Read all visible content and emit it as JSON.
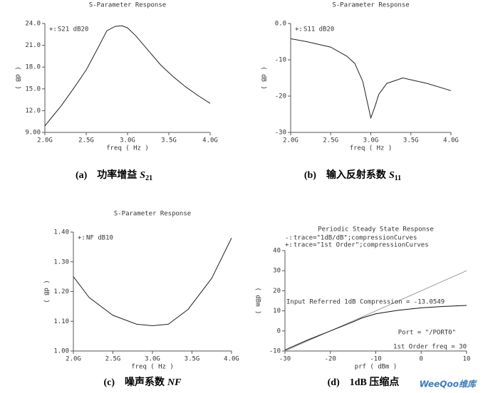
{
  "chart_data": [
    {
      "type": "line",
      "title": "S-Parameter Response",
      "xlabel": "freq ( Hz )",
      "ylabel": "( dB )",
      "caption_label": "(a)",
      "caption_text": "功率增益",
      "caption_symbol": "S",
      "caption_subscript": "21",
      "x": [
        2.0,
        2.1,
        2.2,
        2.35,
        2.5,
        2.65,
        2.75,
        2.85,
        2.93,
        3.0,
        3.1,
        3.25,
        3.4,
        3.55,
        3.7,
        3.85,
        4.0
      ],
      "series": [
        {
          "name": "S21 dB20",
          "color": "#222222",
          "values": [
            9.9,
            11.3,
            12.7,
            15.1,
            17.6,
            20.8,
            23.0,
            23.6,
            23.7,
            23.4,
            22.3,
            20.3,
            18.3,
            16.7,
            15.3,
            14.1,
            13.0
          ]
        }
      ],
      "xlim": [
        2.0,
        4.0
      ],
      "ylim": [
        9,
        24
      ],
      "xticks": [
        {
          "value": 2.0,
          "label": "2.0G"
        },
        {
          "value": 2.5,
          "label": "2.5G"
        },
        {
          "value": 3.0,
          "label": "3.0G"
        },
        {
          "value": 3.5,
          "label": "3.5G"
        },
        {
          "value": 4.0,
          "label": "4.0G"
        }
      ],
      "yticks": [
        {
          "value": 9,
          "label": "9.00"
        },
        {
          "value": 12,
          "label": "12.0"
        },
        {
          "value": 15,
          "label": "15.0"
        },
        {
          "value": 18,
          "label": "18.0"
        },
        {
          "value": 21,
          "label": "21.0"
        },
        {
          "value": 24,
          "label": "24.0"
        }
      ]
    },
    {
      "type": "line",
      "title": "S-Parameter Response",
      "xlabel": "freq ( Hz )",
      "ylabel": "( dB )",
      "caption_label": "(b)",
      "caption_text": "输入反射系数",
      "caption_symbol": "S",
      "caption_subscript": "11",
      "x": [
        2.0,
        2.2,
        2.5,
        2.7,
        2.8,
        2.9,
        2.95,
        3.0,
        3.05,
        3.1,
        3.2,
        3.4,
        3.7,
        4.0
      ],
      "series": [
        {
          "name": "S11 dB20",
          "color": "#222222",
          "values": [
            -4.2,
            -5,
            -6.5,
            -9,
            -11,
            -16,
            -21,
            -26,
            -23,
            -19.5,
            -16.5,
            -15,
            -16.5,
            -18.5
          ]
        }
      ],
      "xlim": [
        2.0,
        4.0
      ],
      "ylim": [
        -30,
        0
      ],
      "xticks": [
        {
          "value": 2.0,
          "label": "2.0G"
        },
        {
          "value": 2.5,
          "label": "2.5G"
        },
        {
          "value": 3.0,
          "label": "3.0G"
        },
        {
          "value": 3.5,
          "label": "3.5G"
        },
        {
          "value": 4.0,
          "label": "4.0G"
        }
      ],
      "yticks": [
        -30,
        -20,
        -10,
        {
          "value": 0,
          "label": "0.0"
        }
      ]
    },
    {
      "type": "line",
      "title": "S-Parameter Response",
      "xlabel": "freq ( Hz )",
      "ylabel": "( dB )",
      "caption_label": "(c)",
      "caption_text": "噪声系数",
      "caption_symbol": "NF",
      "x": [
        2.0,
        2.2,
        2.5,
        2.8,
        3.0,
        3.2,
        3.45,
        3.75,
        4.0
      ],
      "series": [
        {
          "name": "NF dB10",
          "color": "#222222",
          "values": [
            1.25,
            1.18,
            1.12,
            1.09,
            1.085,
            1.09,
            1.14,
            1.245,
            1.38
          ]
        }
      ],
      "xlim": [
        2.0,
        4.0
      ],
      "ylim": [
        1.0,
        1.4
      ],
      "xticks": [
        {
          "value": 2.0,
          "label": "2.0G"
        },
        {
          "value": 2.5,
          "label": "2.5G"
        },
        {
          "value": 3.0,
          "label": "3.0G"
        },
        {
          "value": 3.5,
          "label": "3.5G"
        },
        {
          "value": 4.0,
          "label": "4.0G"
        }
      ],
      "yticks": [
        {
          "value": 1.0,
          "label": "1.00"
        },
        {
          "value": 1.1,
          "label": "1.10"
        },
        {
          "value": 1.2,
          "label": "1.20"
        },
        {
          "value": 1.3,
          "label": "1.30"
        },
        {
          "value": 1.4,
          "label": "1.40"
        }
      ]
    },
    {
      "type": "line",
      "title": "Periodic Steady State Response",
      "xlabel": "prf ( dBm )",
      "ylabel": "( dBm )",
      "caption_label": "(d)",
      "caption_text": "1dB 压缩点",
      "x": [
        -30,
        -25,
        -20,
        -15,
        -13,
        -10,
        -5,
        0,
        5,
        10
      ],
      "series": [
        {
          "name": "trace=\"1dB/dB\";compressionCurves",
          "color": "#888888",
          "values": [
            -10,
            -5,
            0,
            5,
            7,
            10,
            15,
            20,
            25,
            30
          ]
        },
        {
          "name": "trace=\"1st Order\";compressionCurves",
          "color": "#111111",
          "values": [
            -9.5,
            -4.5,
            0,
            4.5,
            6.5,
            8.5,
            10.3,
            11.5,
            12.2,
            12.7
          ]
        }
      ],
      "annotations": [
        "Input Referred 1dB Compression = -13.0549",
        "Port = \"/PORT0\"",
        "1st Order freq = 30"
      ],
      "xlim": [
        -30,
        10
      ],
      "ylim": [
        -10,
        40
      ],
      "xticks": [
        -30,
        -20,
        -10,
        0,
        10
      ],
      "yticks": [
        -10,
        0,
        10,
        20,
        30,
        40
      ]
    }
  ],
  "watermark": "WeeQoo维库"
}
